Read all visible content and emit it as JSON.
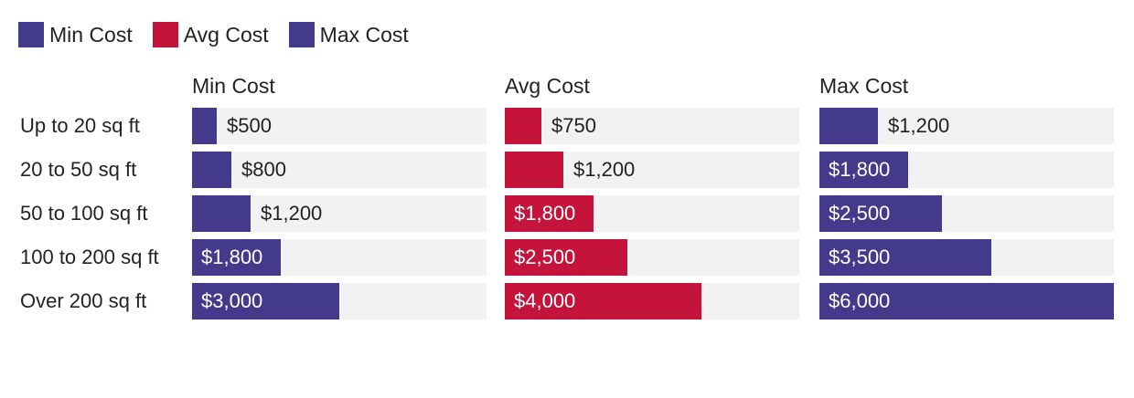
{
  "legend": [
    {
      "label": "Min Cost",
      "color": "#443a8c"
    },
    {
      "label": "Avg Cost",
      "color": "#c4143c"
    },
    {
      "label": "Max Cost",
      "color": "#443a8c"
    }
  ],
  "chart_data": {
    "type": "bar",
    "orientation": "horizontal",
    "layout": "small-multiples",
    "categories": [
      "Up to 20 sq ft",
      "20 to 50 sq ft",
      "50 to 100 sq ft",
      "100 to 200 sq ft",
      "Over 200 sq ft"
    ],
    "series": [
      {
        "name": "Min Cost",
        "color": "#443a8c",
        "values": [
          500,
          800,
          1200,
          1800,
          3000
        ],
        "labels": [
          "$500",
          "$800",
          "$1,200",
          "$1,800",
          "$3,000"
        ]
      },
      {
        "name": "Avg Cost",
        "color": "#c4143c",
        "values": [
          750,
          1200,
          1800,
          2500,
          4000
        ],
        "labels": [
          "$750",
          "$1,200",
          "$1,800",
          "$2,500",
          "$4,000"
        ]
      },
      {
        "name": "Max Cost",
        "color": "#443a8c",
        "values": [
          1200,
          1800,
          2500,
          3500,
          6000
        ],
        "labels": [
          "$1,200",
          "$1,800",
          "$2,500",
          "$3,500",
          "$6,000"
        ]
      }
    ],
    "xlim": [
      0,
      6000
    ],
    "legend_position": "top-left",
    "grid": false
  }
}
